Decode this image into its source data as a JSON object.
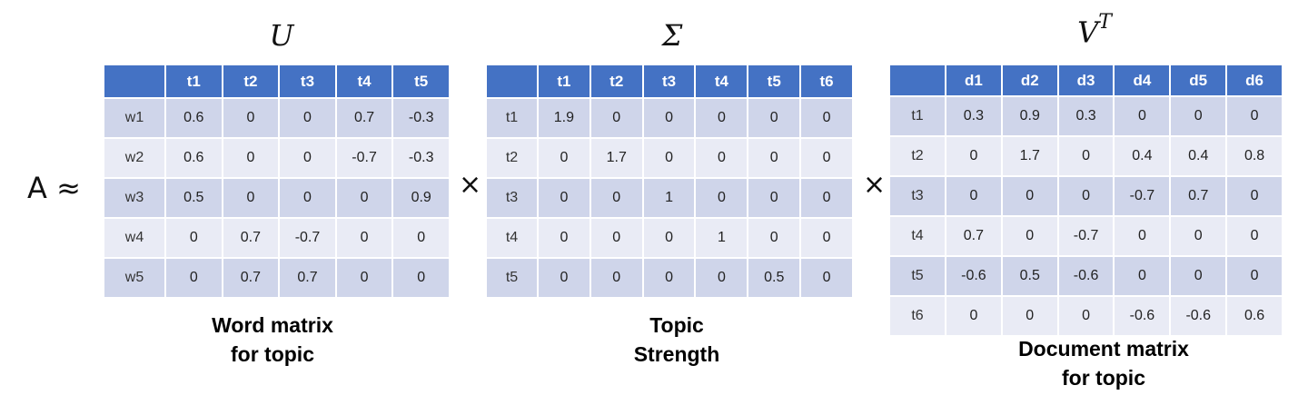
{
  "equation": {
    "lhs": "A ≈",
    "times_1": "×",
    "times_2": "×"
  },
  "matrices": {
    "u": {
      "symbol": "U",
      "caption_line1": "Word matrix",
      "caption_line2": "for topic",
      "corner": "",
      "columns": [
        "t1",
        "t2",
        "t3",
        "t4",
        "t5"
      ],
      "rows": [
        {
          "label": "w1",
          "values": [
            "0.6",
            "0",
            "0",
            "0.7",
            "-0.3"
          ]
        },
        {
          "label": "w2",
          "values": [
            "0.6",
            "0",
            "0",
            "-0.7",
            "-0.3"
          ]
        },
        {
          "label": "w3",
          "values": [
            "0.5",
            "0",
            "0",
            "0",
            "0.9"
          ]
        },
        {
          "label": "w4",
          "values": [
            "0",
            "0.7",
            "-0.7",
            "0",
            "0"
          ]
        },
        {
          "label": "w5",
          "values": [
            "0",
            "0.7",
            "0.7",
            "0",
            "0"
          ]
        }
      ]
    },
    "sigma": {
      "symbol": "Σ",
      "caption_line1": "Topic",
      "caption_line2": "Strength",
      "corner": "",
      "columns": [
        "t1",
        "t2",
        "t3",
        "t4",
        "t5",
        "t6"
      ],
      "rows": [
        {
          "label": "t1",
          "values": [
            "1.9",
            "0",
            "0",
            "0",
            "0",
            "0"
          ]
        },
        {
          "label": "t2",
          "values": [
            "0",
            "1.7",
            "0",
            "0",
            "0",
            "0"
          ]
        },
        {
          "label": "t3",
          "values": [
            "0",
            "0",
            "1",
            "0",
            "0",
            "0"
          ]
        },
        {
          "label": "t4",
          "values": [
            "0",
            "0",
            "0",
            "1",
            "0",
            "0"
          ]
        },
        {
          "label": "t5",
          "values": [
            "0",
            "0",
            "0",
            "0",
            "0.5",
            "0"
          ]
        }
      ]
    },
    "vt": {
      "symbol": "V",
      "symbol_sup": "T",
      "caption_line1": "Document matrix",
      "caption_line2": "for topic",
      "corner": "",
      "columns": [
        "d1",
        "d2",
        "d3",
        "d4",
        "d5",
        "d6"
      ],
      "rows": [
        {
          "label": "t1",
          "values": [
            "0.3",
            "0.9",
            "0.3",
            "0",
            "0",
            "0"
          ]
        },
        {
          "label": "t2",
          "values": [
            "0",
            "1.7",
            "0",
            "0.4",
            "0.4",
            "0.8"
          ]
        },
        {
          "label": "t3",
          "values": [
            "0",
            "0",
            "0",
            "-0.7",
            "0.7",
            "0"
          ]
        },
        {
          "label": "t4",
          "values": [
            "0.7",
            "0",
            "-0.7",
            "0",
            "0",
            "0"
          ]
        },
        {
          "label": "t5",
          "values": [
            "-0.6",
            "0.5",
            "-0.6",
            "0",
            "0",
            "0"
          ]
        },
        {
          "label": "t6",
          "values": [
            "0",
            "0",
            "0",
            "-0.6",
            "-0.6",
            "0.6"
          ]
        }
      ]
    }
  },
  "colors": {
    "header_blue": "#4472c4",
    "row_dark": "#cfd5ea",
    "row_light": "#e9ebf5"
  }
}
